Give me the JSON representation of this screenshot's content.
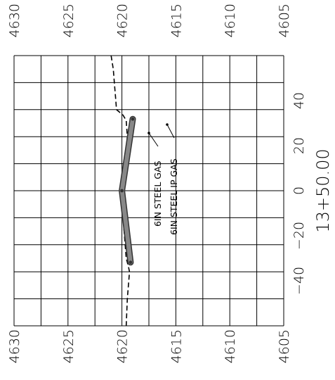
{
  "chart_data": {
    "type": "cross-section",
    "title": "",
    "station_label": "13+50.00",
    "elevation_ticks": [
      "4630",
      "4625",
      "4620",
      "4615",
      "4610",
      "4605"
    ],
    "offset_ticks": [
      "40",
      "20",
      "0",
      "−20",
      "−40"
    ],
    "elev_range": [
      4605,
      4630
    ],
    "offset_range": [
      -50,
      50
    ],
    "grid": true,
    "ground_profile": {
      "style": "dashed",
      "offsets": [
        50,
        45,
        40,
        35,
        30,
        28,
        26,
        20,
        10,
        5,
        0,
        -5,
        -15,
        -20,
        -25,
        -28,
        -30,
        -40,
        -50
      ],
      "elevations": [
        4621.0,
        4620.8,
        4620.7,
        4620.6,
        4620.5,
        4619.9,
        4619.6,
        4619.5,
        4619.7,
        4619.9,
        4620.1,
        4620.0,
        4619.8,
        4619.7,
        4619.6,
        4619.4,
        4619.3,
        4619.5,
        4619.6
      ]
    },
    "pipe_profile": {
      "offsets": [
        26.5,
        0,
        -26.5
      ],
      "elevations": [
        4619.0,
        4620.0,
        4619.2
      ],
      "color": "#888888"
    },
    "annotations": [
      {
        "text": "6IN STEEL GAS",
        "offset": 22,
        "elevation": 4617.8
      },
      {
        "text": "6IN STEEL IP GAS",
        "offset": 25,
        "elevation": 4616.2
      }
    ]
  }
}
